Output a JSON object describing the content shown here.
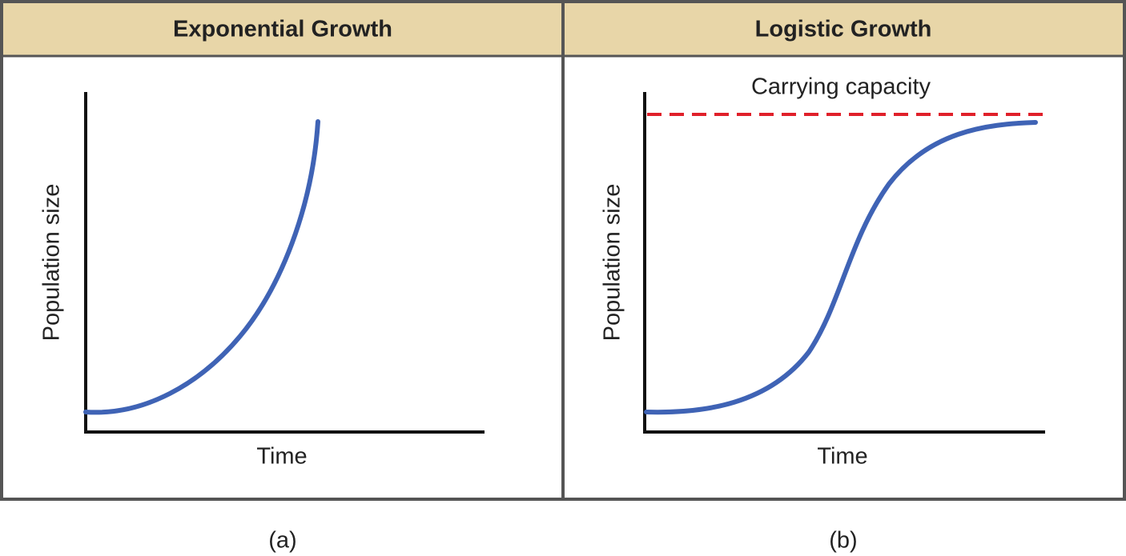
{
  "panels": [
    {
      "title": "Exponential Growth",
      "y_label": "Population size",
      "x_label": "Time",
      "caption": "(a)"
    },
    {
      "title": "Logistic Growth",
      "annotation": "Carrying capacity",
      "y_label": "Population size",
      "x_label": "Time",
      "caption": "(b)"
    }
  ]
}
